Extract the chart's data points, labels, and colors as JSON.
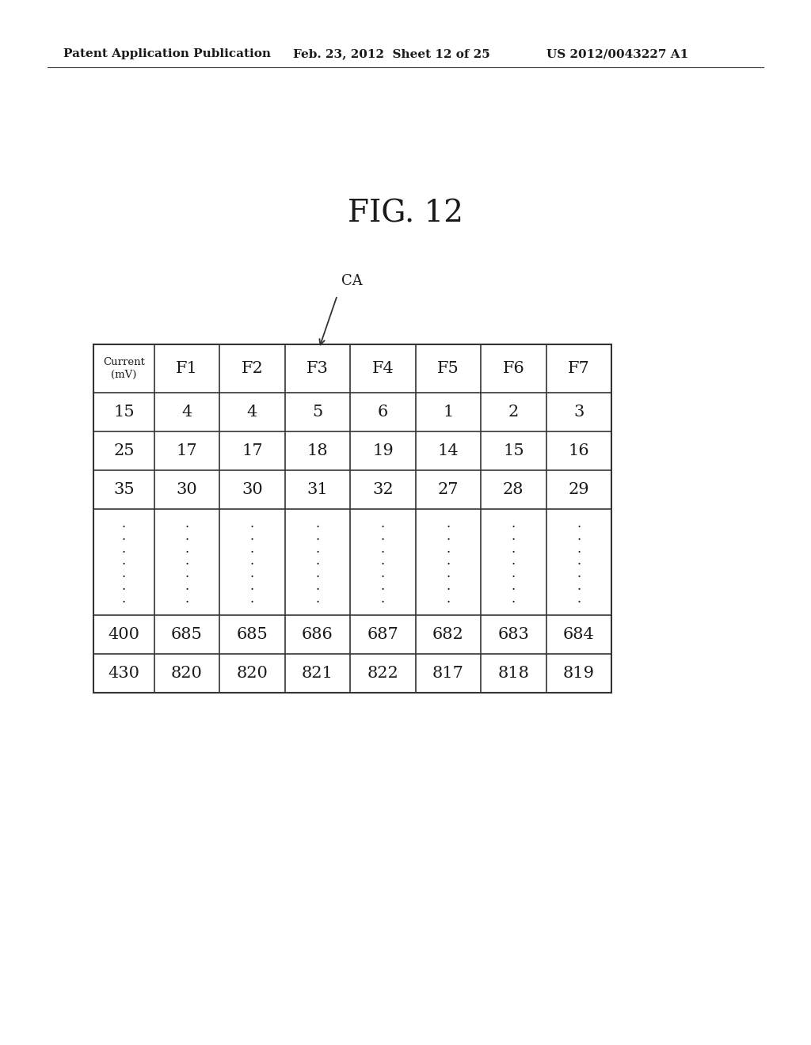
{
  "title": "FIG. 12",
  "header_text": "Patent Application Publication",
  "date_text": "Feb. 23, 2012  Sheet 12 of 25",
  "patent_text": "US 2012/0043227 A1",
  "ca_label": "CA",
  "col_headers": [
    "Current\n(mV)",
    "F1",
    "F2",
    "F3",
    "F4",
    "F5",
    "F6",
    "F7"
  ],
  "data_rows": [
    [
      "15",
      "4",
      "4",
      "5",
      "6",
      "1",
      "2",
      "3"
    ],
    [
      "25",
      "17",
      "17",
      "18",
      "19",
      "14",
      "15",
      "16"
    ],
    [
      "35",
      "30",
      "30",
      "31",
      "32",
      "27",
      "28",
      "29"
    ]
  ],
  "last_rows": [
    [
      "400",
      "685",
      "685",
      "686",
      "687",
      "682",
      "683",
      "684"
    ],
    [
      "430",
      "820",
      "820",
      "821",
      "822",
      "817",
      "818",
      "819"
    ]
  ],
  "background_color": "#ffffff",
  "text_color": "#1a1a1a",
  "line_color": "#333333"
}
